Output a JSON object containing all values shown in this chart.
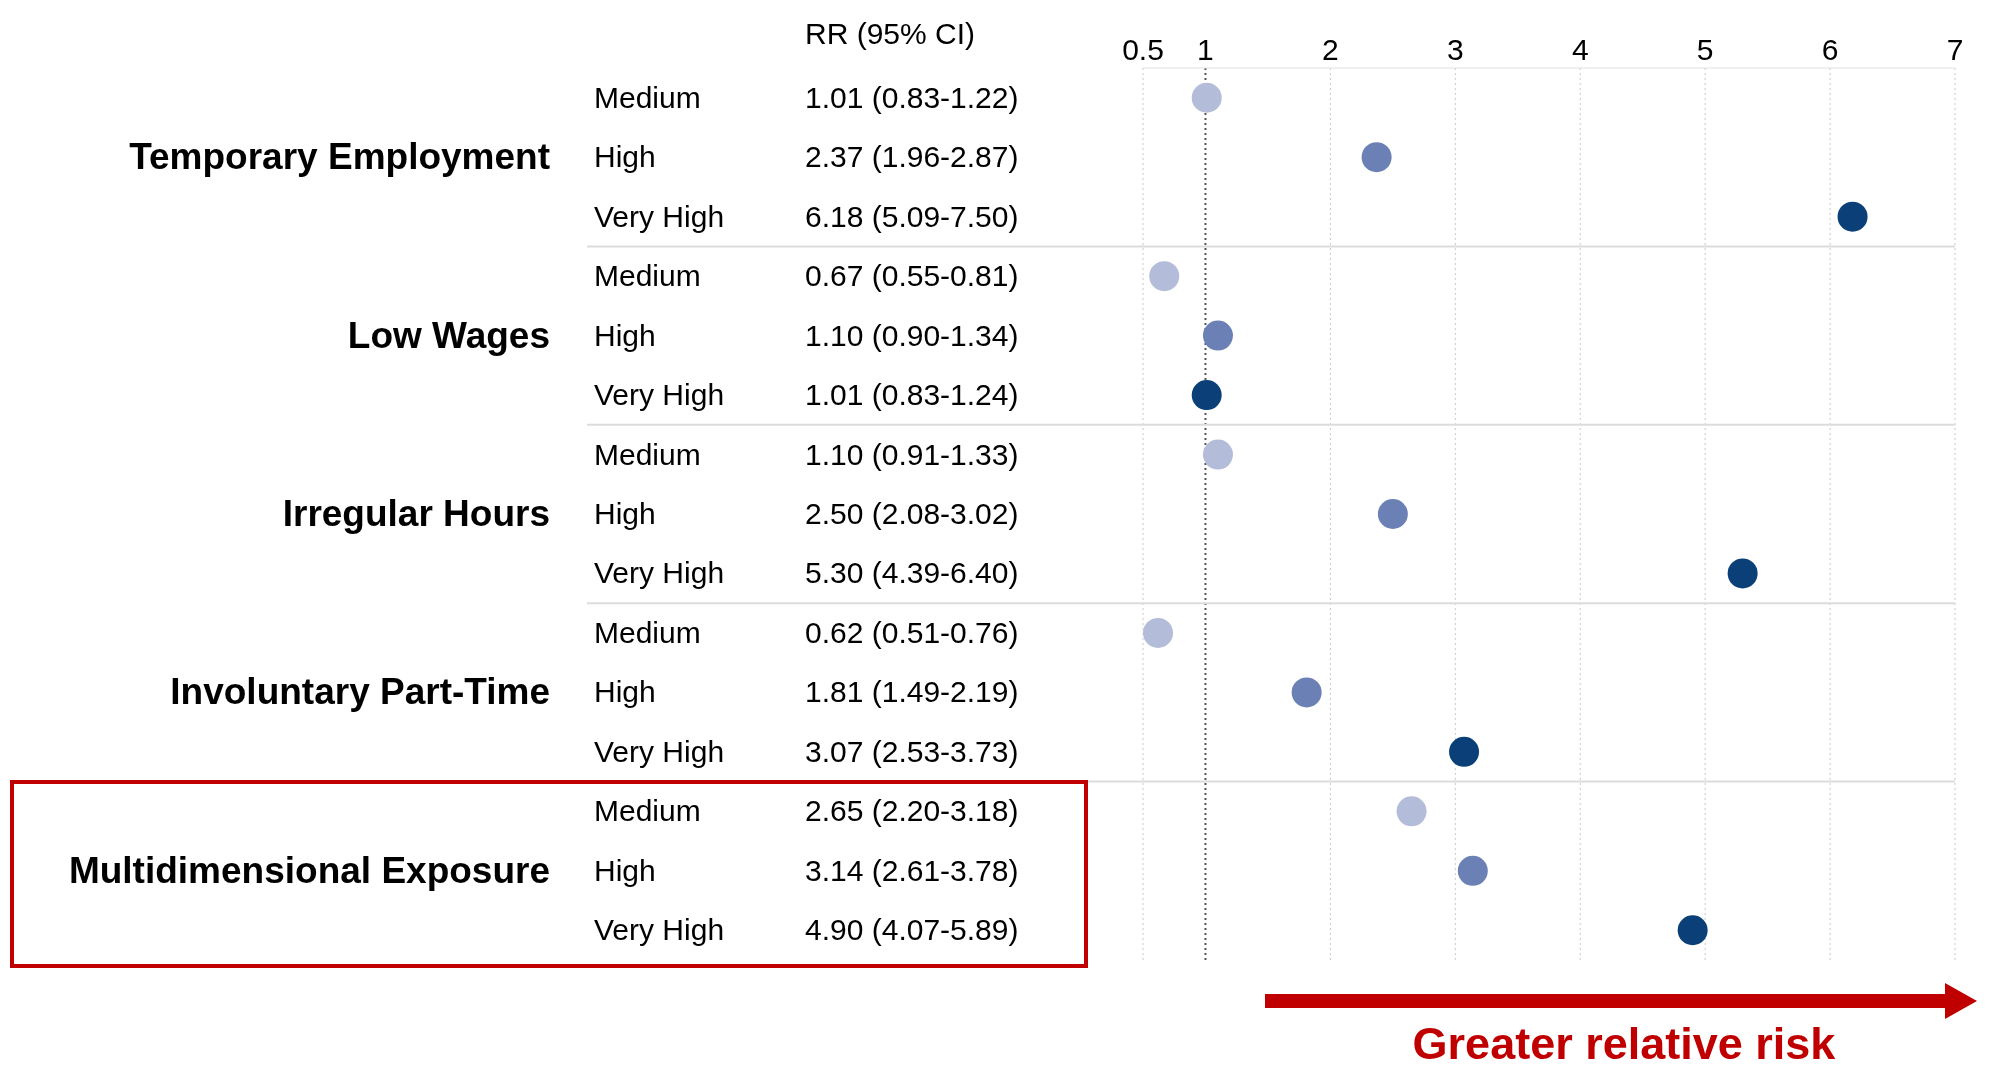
{
  "chart_data": {
    "type": "scatter",
    "orientation": "horizontal",
    "categories": [
      "Medium",
      "High",
      "Very High",
      "Medium",
      "High",
      "Very High",
      "Medium",
      "High",
      "Very High",
      "Medium",
      "High",
      "Very High",
      "Medium",
      "High",
      "Very High"
    ],
    "values": [
      1.01,
      2.37,
      6.18,
      0.67,
      1.1,
      1.01,
      1.1,
      2.5,
      5.3,
      0.62,
      1.81,
      3.07,
      2.65,
      3.14,
      4.9
    ],
    "value_labels": [
      "1.01 (0.83-1.22)",
      "2.37 (1.96-2.87)",
      "6.18 (5.09-7.50)",
      "0.67 (0.55-0.81)",
      "1.10 (0.90-1.34)",
      "1.01 (0.83-1.24)",
      "1.10 (0.91-1.33)",
      "2.50 (2.08-3.02)",
      "5.30 (4.39-6.40)",
      "0.62 (0.51-0.76)",
      "1.81 (1.49-2.19)",
      "3.07 (2.53-3.73)",
      "2.65 (2.20-3.18)",
      "3.14 (2.61-3.78)",
      "4.90 (4.07-5.89)"
    ],
    "colors": [
      "#b3bcd9",
      "#6b80b5",
      "#0a3f78",
      "#b3bcd9",
      "#6b80b5",
      "#0a3f78",
      "#b3bcd9",
      "#6b80b5",
      "#0a3f78",
      "#b3bcd9",
      "#6b80b5",
      "#0a3f78",
      "#b3bcd9",
      "#6b80b5",
      "#0a3f78"
    ],
    "x2lim": [
      0.5,
      7
    ],
    "x2ticks": [
      0.5,
      1,
      2,
      3,
      4,
      5,
      6,
      7
    ],
    "grid": "x",
    "marker": "circle",
    "ref_lines": [
      {
        "axis": "x",
        "value": 1,
        "color": "#555555",
        "line_style": "dotted"
      }
    ],
    "annotations": [
      "Temporary Employment",
      "Low Wages",
      "Irregular Hours",
      "Involuntary Part-Time",
      "Multidimensional Exposure",
      "RR (95% CI)",
      "Greater relative risk"
    ]
  }
}
